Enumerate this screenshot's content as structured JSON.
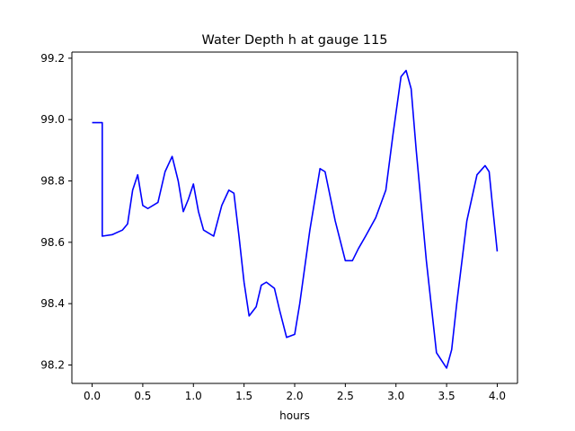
{
  "chart_data": {
    "type": "line",
    "title": "Water Depth h at gauge 115",
    "xlabel": "hours",
    "ylabel": "",
    "xlim": [
      -0.2,
      4.2
    ],
    "ylim": [
      98.14,
      99.22
    ],
    "xticks": [
      0.0,
      0.5,
      1.0,
      1.5,
      2.0,
      2.5,
      3.0,
      3.5,
      4.0
    ],
    "xtick_labels": [
      "0.0",
      "0.5",
      "1.0",
      "1.5",
      "2.0",
      "2.5",
      "3.0",
      "3.5",
      "4.0"
    ],
    "yticks": [
      98.2,
      98.4,
      98.6,
      98.8,
      99.0,
      99.2
    ],
    "ytick_labels": [
      "98.2",
      "98.4",
      "98.6",
      "98.8",
      "99.0",
      "99.2"
    ],
    "grid": false,
    "series": [
      {
        "color": "#0000ff",
        "x": [
          0.0,
          0.1,
          0.1,
          0.2,
          0.3,
          0.35,
          0.4,
          0.45,
          0.5,
          0.55,
          0.65,
          0.72,
          0.79,
          0.85,
          0.9,
          0.95,
          1.0,
          1.05,
          1.1,
          1.2,
          1.28,
          1.35,
          1.4,
          1.45,
          1.5,
          1.55,
          1.62,
          1.67,
          1.72,
          1.8,
          1.85,
          1.92,
          2.0,
          2.05,
          2.15,
          2.25,
          2.3,
          2.4,
          2.5,
          2.57,
          2.63,
          2.7,
          2.8,
          2.9,
          2.97,
          3.05,
          3.1,
          3.15,
          3.2,
          3.3,
          3.4,
          3.5,
          3.55,
          3.6,
          3.7,
          3.8,
          3.88,
          3.92,
          3.95,
          4.0
        ],
        "y": [
          98.99,
          98.99,
          98.62,
          98.625,
          98.64,
          98.66,
          98.77,
          98.82,
          98.72,
          98.71,
          98.73,
          98.83,
          98.88,
          98.8,
          98.7,
          98.74,
          98.79,
          98.7,
          98.64,
          98.62,
          98.72,
          98.77,
          98.76,
          98.62,
          98.47,
          98.36,
          98.39,
          98.46,
          98.47,
          98.45,
          98.38,
          98.29,
          98.3,
          98.4,
          98.64,
          98.84,
          98.83,
          98.67,
          98.54,
          98.54,
          98.58,
          98.62,
          98.68,
          98.77,
          98.95,
          99.14,
          99.16,
          99.1,
          98.9,
          98.54,
          98.24,
          98.19,
          98.25,
          98.4,
          98.67,
          98.82,
          98.85,
          98.83,
          98.73,
          98.57
        ]
      }
    ]
  }
}
